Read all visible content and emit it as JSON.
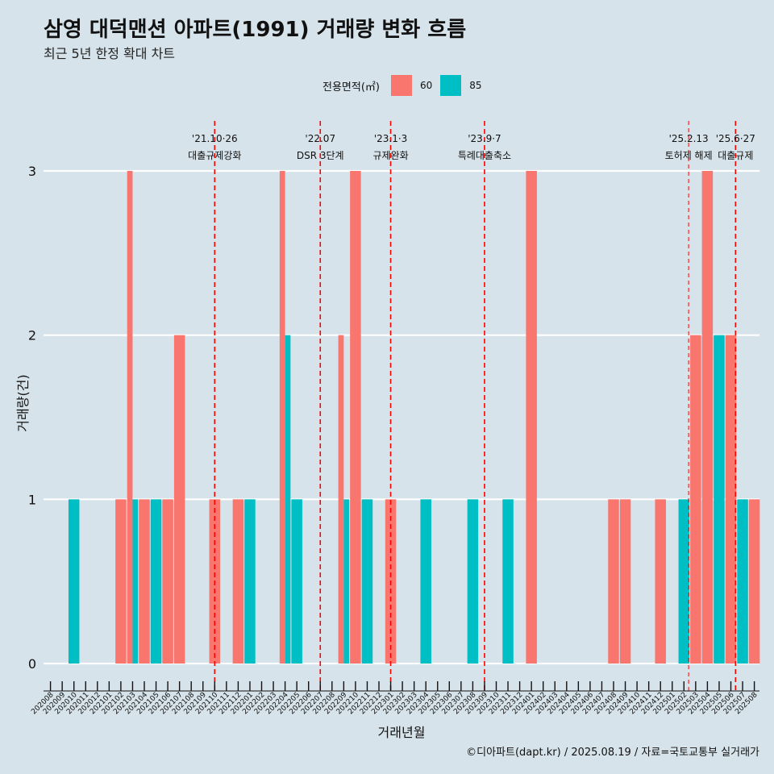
{
  "header": {
    "title": "삼영 대덕맨션 아파트(1991) 거래량 변화 흐름",
    "subtitle": "최근 5년 한정 확대 차트"
  },
  "legend": {
    "title": "전용면적(㎡)",
    "items": [
      {
        "label": "60",
        "color": "#f8766d"
      },
      {
        "label": "85",
        "color": "#00bfc4"
      }
    ]
  },
  "caption": "©디아파트(dapt.kr) / 2025.08.19 / 자료=국토교통부 실거래가",
  "chart_data": {
    "type": "bar",
    "xlabel": "거래년월",
    "ylabel": "거래량(건)",
    "ylim": [
      0,
      3
    ],
    "yticks": [
      0,
      1,
      2,
      3
    ],
    "categories": [
      "202008",
      "202009",
      "202010",
      "202011",
      "202012",
      "202101",
      "202102",
      "202103",
      "202104",
      "202105",
      "202106",
      "202107",
      "202108",
      "202109",
      "202110",
      "202111",
      "202112",
      "202201",
      "202202",
      "202203",
      "202204",
      "202205",
      "202206",
      "202207",
      "202208",
      "202209",
      "202210",
      "202211",
      "202212",
      "202301",
      "202302",
      "202303",
      "202304",
      "202305",
      "202306",
      "202307",
      "202308",
      "202309",
      "202310",
      "202311",
      "202312",
      "202401",
      "202402",
      "202403",
      "202404",
      "202405",
      "202406",
      "202407",
      "202408",
      "202409",
      "202410",
      "202411",
      "202412",
      "202501",
      "202502",
      "202503",
      "202504",
      "202505",
      "202506",
      "202507",
      "202508"
    ],
    "series": [
      {
        "name": "60",
        "color": "#f8766d",
        "values": [
          0,
          0,
          0,
          0,
          0,
          0,
          1,
          3,
          1,
          0,
          1,
          2,
          0,
          0,
          1,
          0,
          1,
          0,
          0,
          0,
          3,
          0,
          0,
          0,
          0,
          2,
          3,
          0,
          0,
          1,
          0,
          0,
          0,
          0,
          0,
          0,
          0,
          0,
          0,
          0,
          0,
          3,
          0,
          0,
          0,
          0,
          0,
          0,
          1,
          1,
          0,
          0,
          1,
          0,
          0,
          2,
          3,
          0,
          2,
          0,
          1
        ]
      },
      {
        "name": "85",
        "color": "#00bfc4",
        "values": [
          0,
          0,
          1,
          0,
          0,
          0,
          0,
          1,
          0,
          1,
          0,
          0,
          0,
          0,
          0,
          0,
          0,
          1,
          0,
          0,
          2,
          1,
          0,
          0,
          0,
          1,
          0,
          1,
          0,
          0,
          0,
          0,
          1,
          0,
          0,
          0,
          1,
          0,
          0,
          1,
          0,
          0,
          0,
          0,
          0,
          0,
          0,
          0,
          0,
          0,
          0,
          0,
          0,
          0,
          1,
          0,
          0,
          2,
          0,
          1,
          0
        ]
      }
    ],
    "annotations": [
      {
        "category_pos": 14.0,
        "line1": "'21.10·26",
        "line2": "대출규제강화",
        "major": true
      },
      {
        "category_pos": 23.0,
        "line1": "'22.07",
        "line2": "DSR 3단계",
        "major": true
      },
      {
        "category_pos": 29.0,
        "line1": "'23.1·3",
        "line2": "규제완화",
        "major": true
      },
      {
        "category_pos": 37.0,
        "line1": "'23.9·7",
        "line2": "특례대출축소",
        "major": true
      },
      {
        "category_pos": 54.4,
        "line1": "'25.2.13",
        "line2": "토허제 해제",
        "major": false
      },
      {
        "category_pos": 58.4,
        "line1": "'25.6·27",
        "line2": "대출규제",
        "major": true
      }
    ]
  }
}
